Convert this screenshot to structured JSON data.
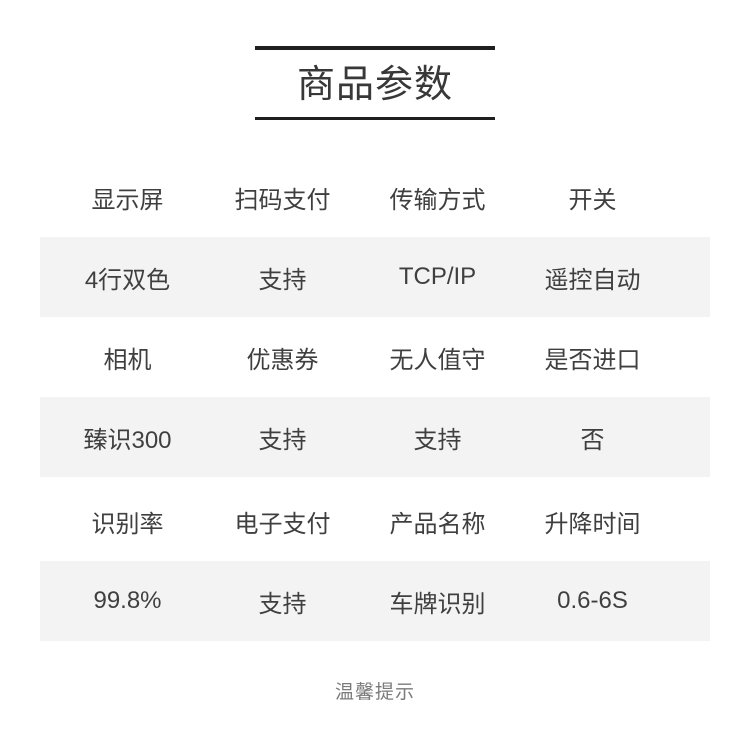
{
  "header": {
    "title": "商品参数"
  },
  "table": {
    "rows": [
      {
        "type": "label",
        "cells": [
          "显示屏",
          "扫码支付",
          "传输方式",
          "开关"
        ]
      },
      {
        "type": "value",
        "cells": [
          "4行双色",
          "支持",
          "TCP/IP",
          "遥控自动"
        ]
      },
      {
        "type": "label",
        "cells": [
          "相机",
          "优惠券",
          "无人值守",
          "是否进口"
        ]
      },
      {
        "type": "value",
        "cells": [
          "臻识300",
          "支持",
          "支持",
          "否"
        ]
      },
      {
        "type": "label",
        "cells": [
          "识别率",
          "电子支付",
          "产品名称",
          "升降时间"
        ]
      },
      {
        "type": "value",
        "cells": [
          "99.8%",
          "支持",
          "车牌识别",
          "0.6-6S"
        ]
      }
    ]
  },
  "footer": {
    "note": "温馨提示"
  },
  "colors": {
    "value_row_bg": "#f3f3f3",
    "cell_text": "#3f3f3f",
    "title_text": "#383838",
    "rule": "#1f1f1f",
    "footer_text": "#7b7b7b"
  }
}
